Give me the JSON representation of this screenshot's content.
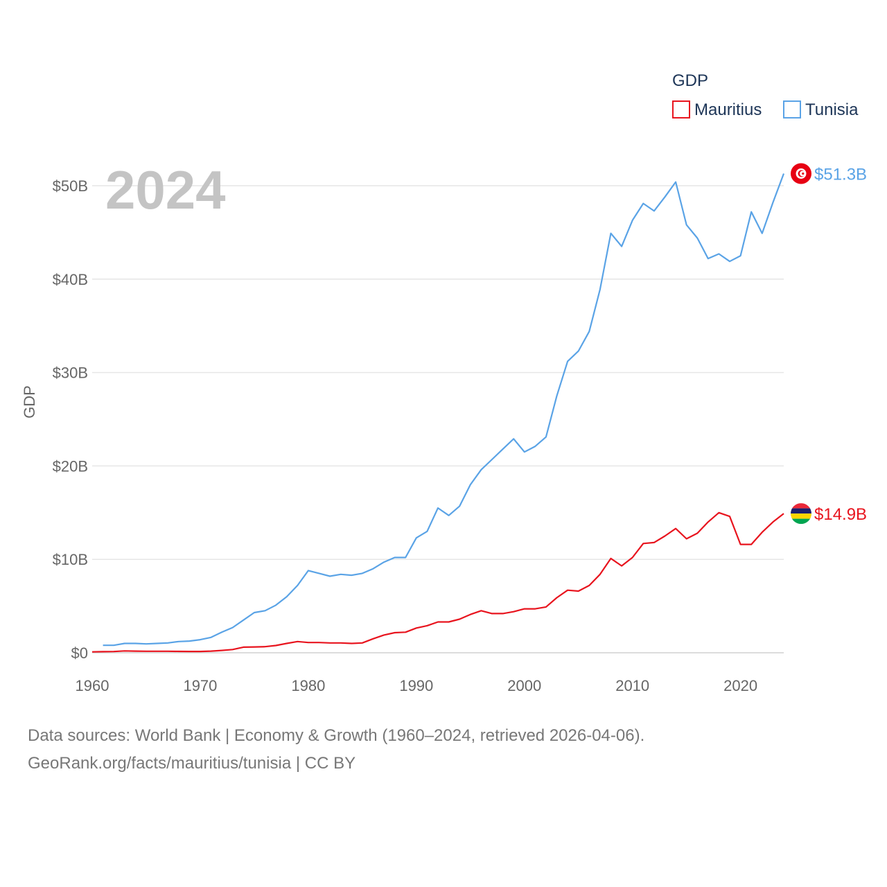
{
  "chart_data": {
    "type": "line",
    "ylabel": "GDP",
    "ylim": [
      0,
      55
    ],
    "y_ticks": [
      0,
      10,
      20,
      30,
      40,
      50
    ],
    "y_tick_labels": [
      "$0",
      "$10B",
      "$20B",
      "$30B",
      "$40B",
      "$50B"
    ],
    "xlim": [
      1960,
      2024
    ],
    "x_ticks": [
      1960,
      1970,
      1980,
      1990,
      2000,
      2010,
      2020
    ],
    "x_tick_labels": [
      "1960",
      "1970",
      "1980",
      "1990",
      "2000",
      "2010",
      "2020"
    ],
    "year_label": "2024",
    "legend": {
      "title": "GDP",
      "position": "top-right"
    },
    "unit": "billions USD",
    "series": [
      {
        "name": "Mauritius",
        "color": "#e8141e",
        "end_label": "$14.9B",
        "flag": "mauritius-flag",
        "start_year": 1960,
        "values": [
          0.1,
          0.12,
          0.13,
          0.2,
          0.18,
          0.16,
          0.16,
          0.16,
          0.15,
          0.14,
          0.14,
          0.18,
          0.25,
          0.35,
          0.6,
          0.62,
          0.65,
          0.78,
          1.0,
          1.2,
          1.1,
          1.1,
          1.05,
          1.05,
          1.0,
          1.05,
          1.5,
          1.9,
          2.15,
          2.2,
          2.65,
          2.9,
          3.3,
          3.3,
          3.6,
          4.1,
          4.5,
          4.2,
          4.2,
          4.4,
          4.7,
          4.7,
          4.9,
          5.9,
          6.7,
          6.6,
          7.2,
          8.4,
          10.1,
          9.3,
          10.2,
          11.7,
          11.8,
          12.5,
          13.3,
          12.2,
          12.8,
          14.0,
          15.0,
          14.6,
          11.6,
          11.6,
          12.9,
          14.0,
          14.9
        ]
      },
      {
        "name": "Tunisia",
        "color": "#5aa3e6",
        "end_label": "$51.3B",
        "flag": "tunisia-flag",
        "start_year": 1961,
        "values": [
          0.8,
          0.8,
          1.0,
          1.0,
          0.95,
          1.0,
          1.05,
          1.2,
          1.25,
          1.4,
          1.65,
          2.2,
          2.7,
          3.5,
          4.3,
          4.5,
          5.1,
          6.0,
          7.2,
          8.8,
          8.5,
          8.2,
          8.4,
          8.3,
          8.5,
          9.0,
          9.7,
          10.2,
          10.2,
          12.3,
          13.0,
          15.5,
          14.7,
          15.7,
          18.0,
          19.6,
          20.7,
          21.8,
          22.9,
          21.5,
          22.1,
          23.1,
          27.5,
          31.2,
          32.3,
          34.4,
          38.9,
          44.9,
          43.5,
          46.3,
          48.1,
          47.3,
          48.8,
          50.4,
          45.8,
          44.4,
          42.2,
          42.7,
          41.9,
          42.5,
          47.2,
          44.9,
          48.2,
          51.3
        ]
      }
    ]
  },
  "footer": {
    "line1": "Data sources: World Bank | Economy & Growth (1960–2024, retrieved 2026-04-06).",
    "line2": "GeoRank.org/facts/mauritius/tunisia | CC BY"
  }
}
